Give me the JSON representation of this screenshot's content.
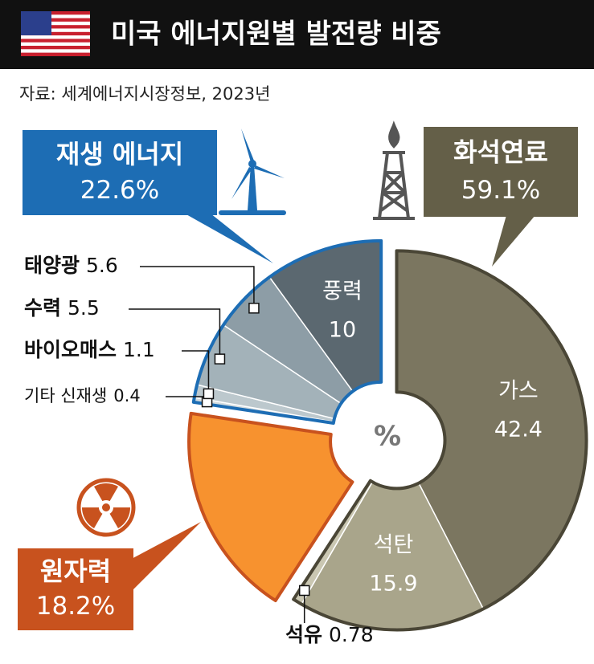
{
  "chart_data": {
    "type": "pie",
    "title": "미국 에너지원별 발전량 비중",
    "source": "자료: 세계에너지시장정보, 2023년",
    "center_label": "%",
    "groups": [
      {
        "name": "화석연료",
        "value": 59.1,
        "value_label": "59.1%",
        "color": "#645f48",
        "outline": "#4a4636",
        "categories": [
          "가스",
          "석탄",
          "석유"
        ],
        "values": [
          42.4,
          15.9,
          0.78
        ],
        "colors": [
          "#7b7660",
          "#a9a58b",
          "#cac7b2"
        ]
      },
      {
        "name": "원자력",
        "value": 18.2,
        "value_label": "18.2%",
        "color": "#c8521e",
        "outline": "#c8521e",
        "slice_color": "#f7922f"
      },
      {
        "name": "재생 에너지",
        "value": 22.6,
        "value_label": "22.6%",
        "color": "#1d6db4",
        "outline": "#1d6db4",
        "categories": [
          "기타 신재생",
          "바이오매스",
          "수력",
          "태양광",
          "풍력"
        ],
        "values": [
          0.4,
          1.1,
          5.5,
          5.6,
          10
        ],
        "colors": [
          "#d3dcdf",
          "#bcc8cd",
          "#a3b2b9",
          "#8d9da6",
          "#5b6870"
        ]
      }
    ]
  }
}
